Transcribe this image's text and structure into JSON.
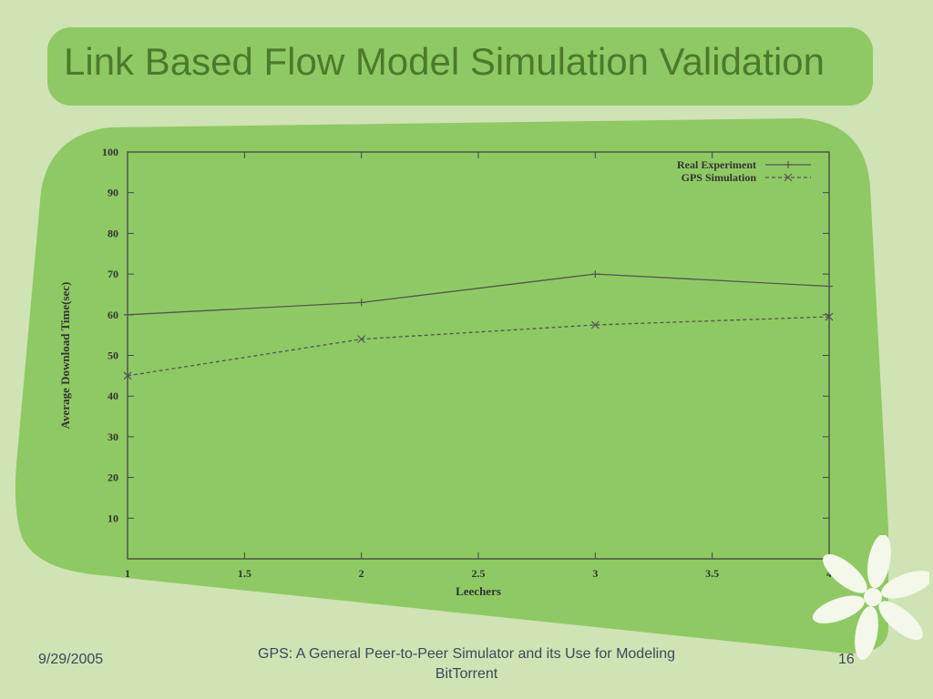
{
  "slide": {
    "title": "Link Based Flow Model Simulation Validation",
    "footer_date": "9/29/2005",
    "footer_title": "GPS: A General Peer-to-Peer Simulator and its Use for Modeling BitTorrent",
    "page_number": "16"
  },
  "colors": {
    "background": "#cfe3b4",
    "panel": "#8fc964",
    "title_text": "#4c7a2c",
    "line": "#555555"
  },
  "chart_data": {
    "type": "line",
    "title": "",
    "xlabel": "Leechers",
    "ylabel": "Average Download Time(sec)",
    "xlim": [
      1,
      4
    ],
    "ylim": [
      0,
      100
    ],
    "x_ticks": [
      "1",
      "1.5",
      "2",
      "2.5",
      "3",
      "3.5",
      "4"
    ],
    "y_ticks": [
      "10",
      "20",
      "30",
      "40",
      "50",
      "60",
      "70",
      "80",
      "90",
      "100"
    ],
    "grid": false,
    "legend_position": "top-right",
    "x": [
      1,
      2,
      3,
      4
    ],
    "series": [
      {
        "name": "Real Experiment",
        "marker": "plus",
        "dash": "solid",
        "values": [
          60,
          63,
          70,
          67
        ]
      },
      {
        "name": "GPS Simulation",
        "marker": "cross",
        "dash": "dashed",
        "values": [
          45,
          54,
          57.5,
          59.5
        ]
      }
    ]
  }
}
